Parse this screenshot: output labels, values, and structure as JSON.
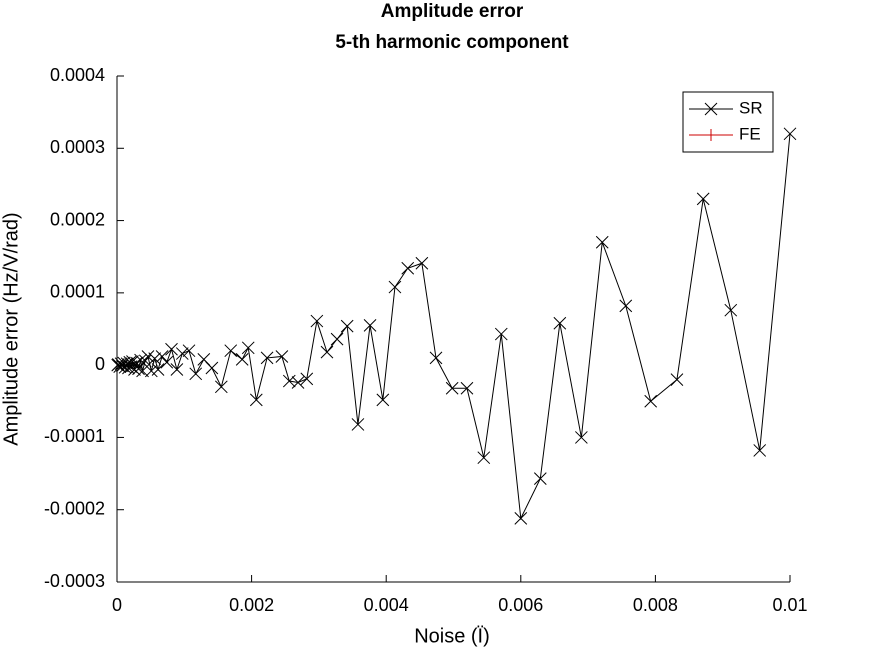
{
  "chart_data": {
    "type": "line",
    "title": "Amplitude error",
    "subtitle": "5-th harmonic component",
    "x_label": "Noise (Ï)",
    "y_label": "Amplitude error (Hz/V/rad)",
    "x": [
      1e-05,
      2e-05,
      4e-05,
      6e-05,
      8e-05,
      0.0001,
      0.00012,
      0.00015,
      0.00017,
      0.00019,
      0.00021,
      0.00023,
      0.00026,
      0.00029,
      0.00032,
      0.00035,
      0.00038,
      0.00042,
      0.00046,
      0.00051,
      0.00056,
      0.00061,
      0.00067,
      0.00074,
      0.00081,
      0.00089,
      0.00097,
      0.00107,
      0.00117,
      0.00129,
      0.00141,
      0.00155,
      0.00169,
      0.00186,
      0.00195,
      0.00207,
      0.00223,
      0.00245,
      0.00256,
      0.00269,
      0.00282,
      0.00297,
      0.00312,
      0.00327,
      0.00342,
      0.00358,
      0.00376,
      0.00395,
      0.00413,
      0.00432,
      0.00453,
      0.00474,
      0.00498,
      0.0052,
      0.00545,
      0.00571,
      0.006,
      0.00629,
      0.00658,
      0.0069,
      0.00721,
      0.00756,
      0.00793,
      0.00832,
      0.00871,
      0.00912,
      0.00955,
      0.01
    ],
    "series": [
      {
        "name": "SR",
        "color": "#000000",
        "marker": "x",
        "values": [
          0,
          1e-06,
          -2e-06,
          2e-06,
          -1e-06,
          3e-06,
          -3e-06,
          2e-06,
          -4e-06,
          4e-06,
          -2e-06,
          5e-06,
          -6e-06,
          3e-06,
          -5e-06,
          7e-06,
          -8e-06,
          6e-06,
          1.2e-05,
          -8e-06,
          9e-06,
          -6e-06,
          1.2e-05,
          4e-06,
          2.2e-05,
          -6e-06,
          1.6e-05,
          2e-05,
          -1.2e-05,
          8e-06,
          -4e-06,
          -3e-05,
          2e-05,
          8e-06,
          2.4e-05,
          -4.8e-05,
          1e-05,
          1.2e-05,
          -2.2e-05,
          -2.4e-05,
          -1.9e-05,
          6.1e-05,
          1.8e-05,
          3.6e-05,
          5.4e-05,
          -8.2e-05,
          5.5e-05,
          -4.8e-05,
          0.000108,
          0.000134,
          0.000141,
          1e-05,
          -3.2e-05,
          -3.2e-05,
          -0.000128,
          4.3e-05,
          -0.000212,
          -0.000157,
          5.8e-05,
          -0.0001,
          0.00017,
          8.2e-05,
          -5e-05,
          -2e-05,
          0.00023,
          7.6e-05,
          -0.000118,
          0.00032
        ]
      },
      {
        "name": "FE",
        "color": "#cc0000",
        "marker": "+"
      }
    ],
    "xlim": [
      0,
      0.01
    ],
    "xticks": [
      0,
      0.002,
      0.004,
      0.006,
      0.008,
      0.01
    ],
    "ylim": [
      -0.0003,
      0.0004
    ],
    "yticks": [
      -0.0003,
      -0.0002,
      -0.0001,
      0,
      0.0001,
      0.0002,
      0.0003,
      0.0004
    ],
    "grid": false,
    "legend": "top-right"
  }
}
